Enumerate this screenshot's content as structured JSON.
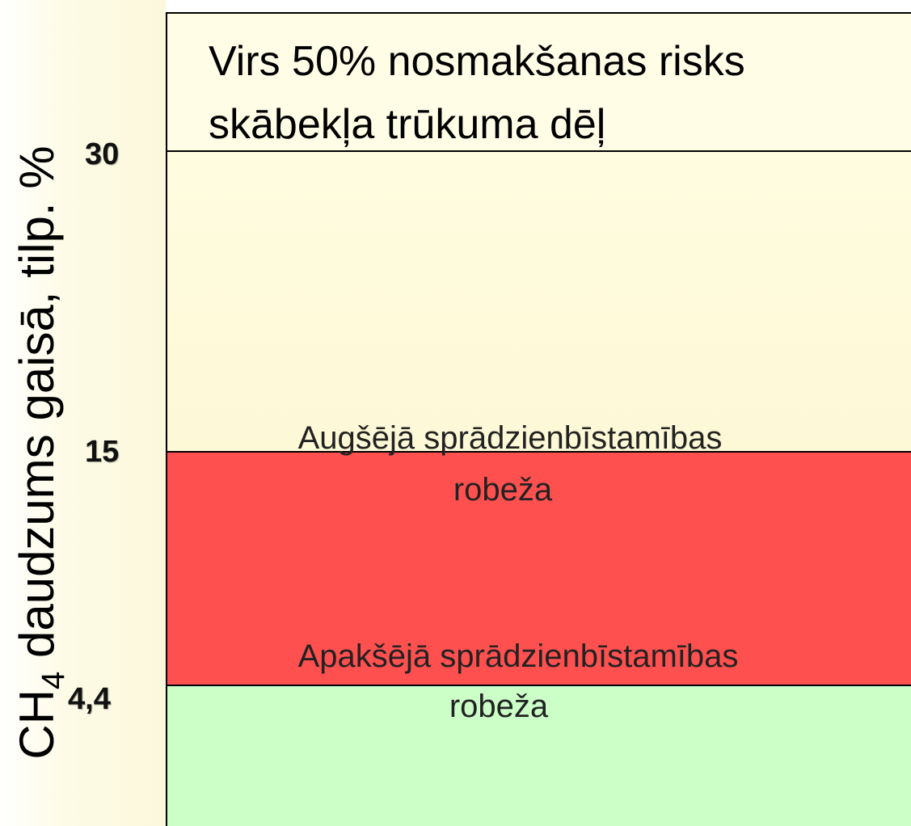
{
  "y_axis": {
    "label_main": "CH",
    "label_sub": "4",
    "label_rest": " daudzums gaisā, tilp. %"
  },
  "levels": [
    "30",
    "15",
    "4,4"
  ],
  "zones": {
    "top": {
      "lines": [
        "Virs 50% nosmakšanas risks",
        "skābekļa trūkuma dēļ"
      ]
    },
    "upper_limit": {
      "lines": [
        "Augšējā sprādzienbīstamības",
        "robeža"
      ]
    },
    "lower_limit": {
      "lines": [
        "Apakšējā sprādzienbīstamības",
        "robeža"
      ]
    }
  }
}
